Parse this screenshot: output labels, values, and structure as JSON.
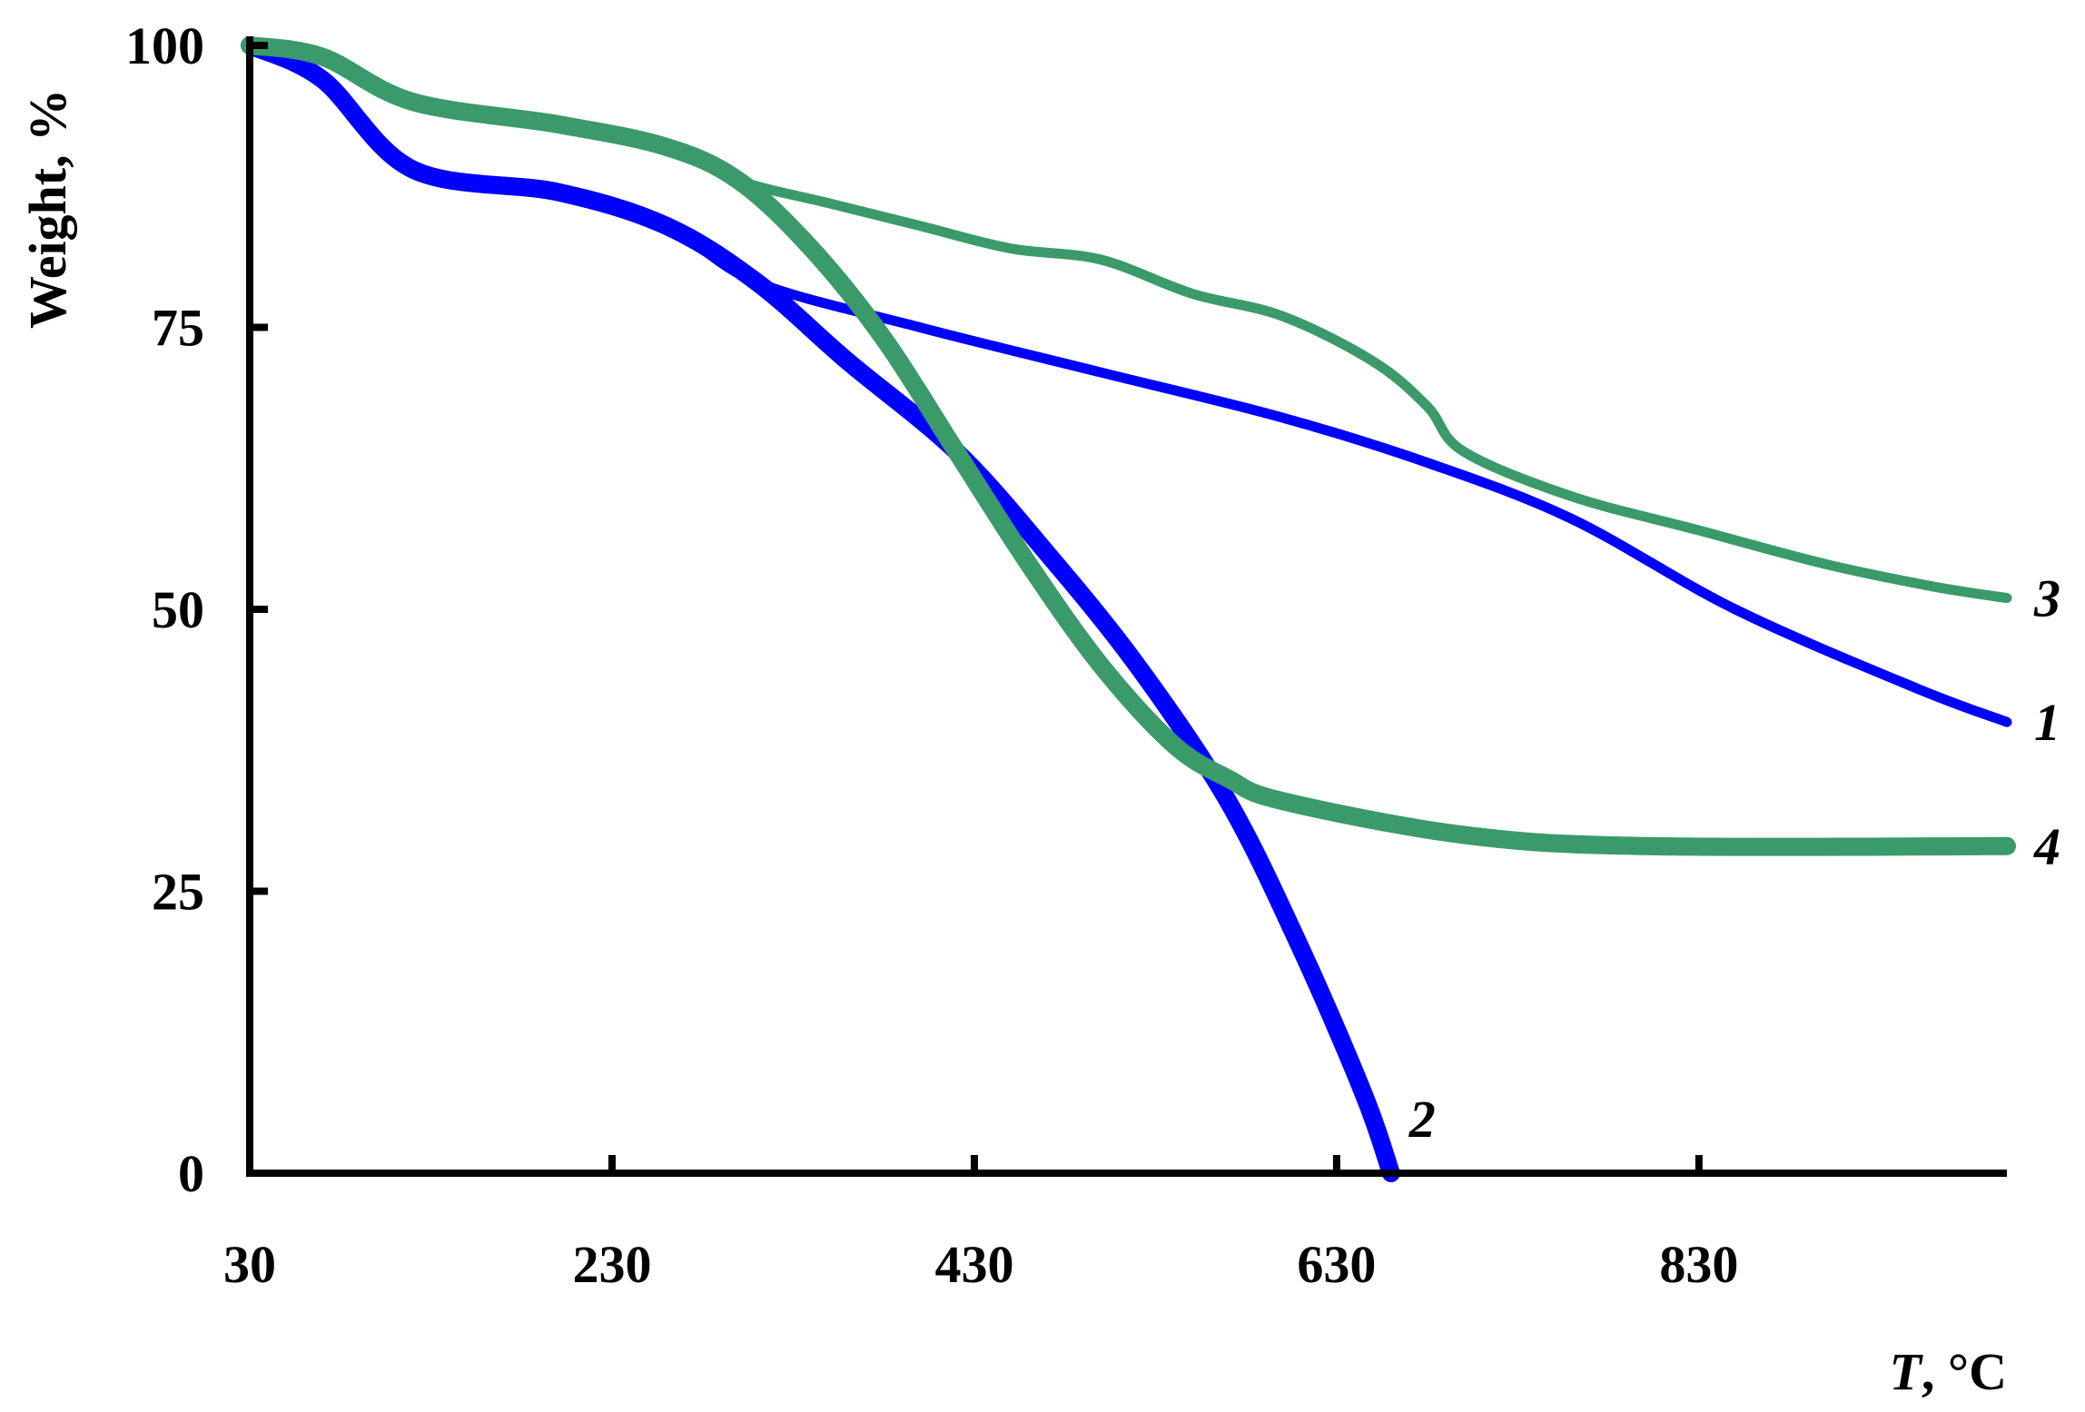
{
  "chart_data": {
    "type": "line",
    "ylabel": "Weight, %",
    "xlabel": {
      "var": "T",
      "unit": ", °C"
    },
    "xlim": [
      30,
      1000
    ],
    "ylim": [
      0,
      100
    ],
    "x_ticks": [
      30,
      230,
      430,
      630,
      830
    ],
    "y_ticks": [
      0,
      25,
      50,
      75,
      100
    ],
    "grid": false,
    "series": [
      {
        "name": "1",
        "color": "#0000ff",
        "style": "thin",
        "points": [
          [
            30,
            100
          ],
          [
            70,
            97
          ],
          [
            120,
            89
          ],
          [
            200,
            87
          ],
          [
            260,
            84
          ],
          [
            310,
            79
          ],
          [
            400,
            75
          ],
          [
            500,
            71
          ],
          [
            600,
            67
          ],
          [
            680,
            63
          ],
          [
            760,
            58
          ],
          [
            850,
            50
          ],
          [
            950,
            43
          ],
          [
            1000,
            40
          ]
        ]
      },
      {
        "name": "2",
        "color": "#0000ff",
        "style": "thick",
        "points": [
          [
            30,
            100
          ],
          [
            70,
            97
          ],
          [
            120,
            89
          ],
          [
            200,
            87
          ],
          [
            260,
            84
          ],
          [
            310,
            79
          ],
          [
            360,
            72
          ],
          [
            420,
            64
          ],
          [
            470,
            55
          ],
          [
            520,
            45
          ],
          [
            570,
            33
          ],
          [
            610,
            20
          ],
          [
            645,
            7
          ],
          [
            660,
            0
          ]
        ]
      },
      {
        "name": "3",
        "color": "#3a9a6a",
        "style": "thin",
        "points": [
          [
            30,
            100
          ],
          [
            70,
            99
          ],
          [
            120,
            95
          ],
          [
            200,
            93
          ],
          [
            260,
            91
          ],
          [
            300,
            88
          ],
          [
            350,
            86
          ],
          [
            400,
            84
          ],
          [
            450,
            82
          ],
          [
            500,
            81
          ],
          [
            550,
            78
          ],
          [
            600,
            76
          ],
          [
            650,
            72
          ],
          [
            680,
            68
          ],
          [
            700,
            64
          ],
          [
            760,
            60
          ],
          [
            830,
            57
          ],
          [
            900,
            54
          ],
          [
            960,
            52
          ],
          [
            1000,
            51
          ]
        ]
      },
      {
        "name": "4",
        "color": "#3a9a6a",
        "style": "thick",
        "points": [
          [
            30,
            100
          ],
          [
            70,
            99
          ],
          [
            120,
            95
          ],
          [
            200,
            93
          ],
          [
            260,
            91
          ],
          [
            300,
            88
          ],
          [
            340,
            82
          ],
          [
            380,
            74
          ],
          [
            420,
            64
          ],
          [
            460,
            54
          ],
          [
            500,
            45
          ],
          [
            540,
            38
          ],
          [
            570,
            35
          ],
          [
            600,
            33
          ],
          [
            700,
            30
          ],
          [
            800,
            29
          ],
          [
            1000,
            29
          ]
        ]
      }
    ]
  }
}
